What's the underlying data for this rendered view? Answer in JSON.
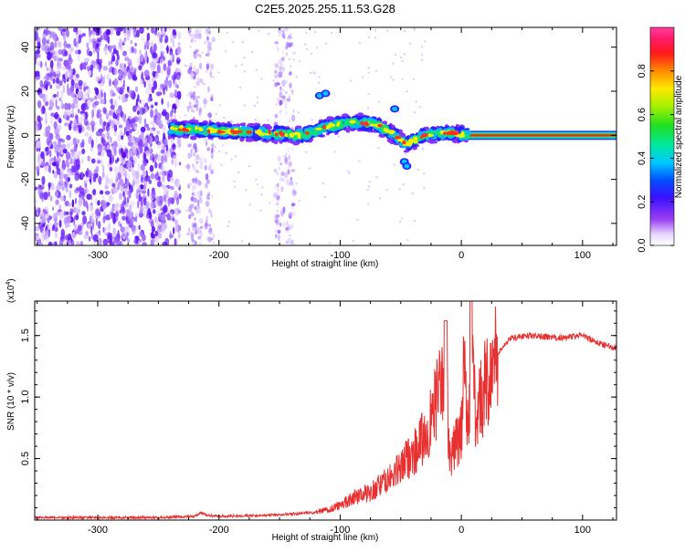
{
  "chart_data": [
    {
      "type": "heatmap",
      "title": "C2E5.2025.255.11.53.G28",
      "xlabel": "Height of straight line (km)",
      "ylabel": "Frequency (Hz)",
      "xlim": [
        -352,
        128
      ],
      "ylim": [
        -50,
        49
      ],
      "x_ticks": [
        -300,
        -200,
        -100,
        0,
        100
      ],
      "x_tick_labels": [
        "-300",
        "-200",
        "-100",
        "0",
        "100"
      ],
      "y_ticks": [
        -40,
        -20,
        0,
        20,
        40
      ],
      "y_tick_labels": [
        "-40",
        "-20",
        "0",
        "20",
        "40"
      ],
      "colorbar": {
        "label": "Normalized spectral amplitude",
        "range": [
          0,
          1
        ],
        "ticks": [
          0.0,
          0.2,
          0.4,
          0.6,
          0.8
        ],
        "tick_labels": [
          "0.0",
          "0.2",
          "0.4",
          "0.6",
          "0.8"
        ],
        "colormap": "rainbow (white → violet → blue → cyan → green → yellow → red → magenta)"
      },
      "features": {
        "noise_region_x": [
          -352,
          -232
        ],
        "sparse_streaks_x": [
          -222,
          -218,
          -208,
          -150,
          -141
        ],
        "main_signal_path": [
          {
            "x": -240,
            "freq": 3
          },
          {
            "x": -200,
            "freq": 2
          },
          {
            "x": -160,
            "freq": 1
          },
          {
            "x": -130,
            "freq": 0
          },
          {
            "x": -110,
            "freq": 4
          },
          {
            "x": -90,
            "freq": 6
          },
          {
            "x": -70,
            "freq": 5
          },
          {
            "x": -55,
            "freq": 0
          },
          {
            "x": -45,
            "freq": -4
          },
          {
            "x": -30,
            "freq": 0
          },
          {
            "x": -10,
            "freq": 1
          },
          {
            "x": 5,
            "freq": 0
          }
        ],
        "tone_line": {
          "x_from": 0,
          "x_to": 128,
          "freq": 0
        }
      },
      "grid": false
    },
    {
      "type": "line",
      "xlabel": "Height of straight line (km)",
      "ylabel": "SNR (10 * v/v)",
      "y_scale_label": "(x10^4)",
      "y_multiplier_text": "(x10",
      "y_multiplier_exp": "4",
      "xlim": [
        -352,
        128
      ],
      "ylim": [
        0,
        1.78
      ],
      "x_ticks": [
        -300,
        -200,
        -100,
        0,
        100
      ],
      "x_tick_labels": [
        "-300",
        "-200",
        "-100",
        "0",
        "100"
      ],
      "y_ticks": [
        0.5,
        1.0,
        1.5
      ],
      "y_tick_labels": [
        "0.5",
        "1.0",
        "1.5"
      ],
      "series_color": "#e83030",
      "series": [
        {
          "x": [
            -352,
            -300,
            -250,
            -220,
            -215,
            -210,
            -200,
            -160,
            -120,
            -105,
            -95,
            -85,
            -75,
            -65,
            -60,
            -55,
            -50,
            -45,
            -40,
            -35,
            -30,
            -25,
            -20,
            -15,
            -12,
            -10,
            -5,
            0,
            2,
            6,
            10,
            12,
            15,
            20,
            25,
            30,
            40,
            60,
            80,
            100,
            110,
            120,
            128
          ],
          "y": [
            0.02,
            0.02,
            0.02,
            0.03,
            0.06,
            0.04,
            0.03,
            0.04,
            0.06,
            0.1,
            0.15,
            0.2,
            0.23,
            0.3,
            0.33,
            0.38,
            0.42,
            0.5,
            0.55,
            0.6,
            0.7,
            0.8,
            1.0,
            1.1,
            1.2,
            0.5,
            0.6,
            0.7,
            1.2,
            0.8,
            1.3,
            0.6,
            0.95,
            1.1,
            1.25,
            1.35,
            1.48,
            1.5,
            1.48,
            1.5,
            1.45,
            1.42,
            1.4
          ]
        }
      ],
      "grid": false
    }
  ]
}
